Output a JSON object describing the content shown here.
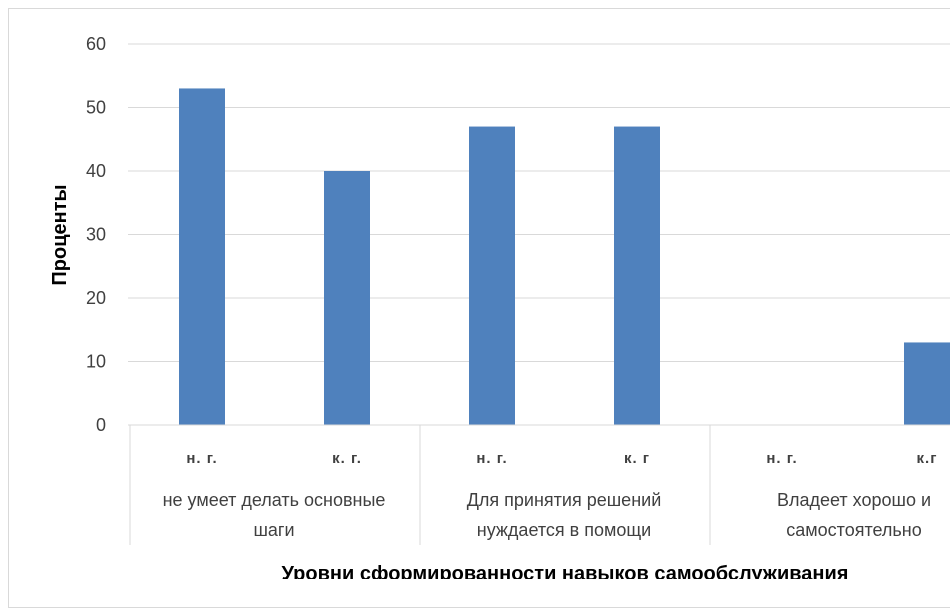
{
  "chart_data": {
    "type": "bar",
    "title": "",
    "xlabel": "Уровни сформированности навыков самообслуживания",
    "ylabel": "Проценты",
    "ylim": [
      0,
      60
    ],
    "yticks": [
      0,
      10,
      20,
      30,
      40,
      50,
      60
    ],
    "grid": true,
    "legend": "none",
    "bar_color": "#4f81bd",
    "groups": [
      {
        "label_lines": [
          "не умеет делать основные",
          "шаги"
        ],
        "categories": [
          "н. г.",
          "к. г."
        ],
        "values": [
          53,
          40
        ]
      },
      {
        "label_lines": [
          "Для принятия решений",
          "нуждается в помощи"
        ],
        "categories": [
          "н. г.",
          "к. г"
        ],
        "values": [
          47,
          47
        ]
      },
      {
        "label_lines": [
          "Владеет хорошо и",
          "самостоятельно"
        ],
        "categories": [
          "н. г.",
          "к.г"
        ],
        "values": [
          0,
          13
        ]
      }
    ]
  }
}
